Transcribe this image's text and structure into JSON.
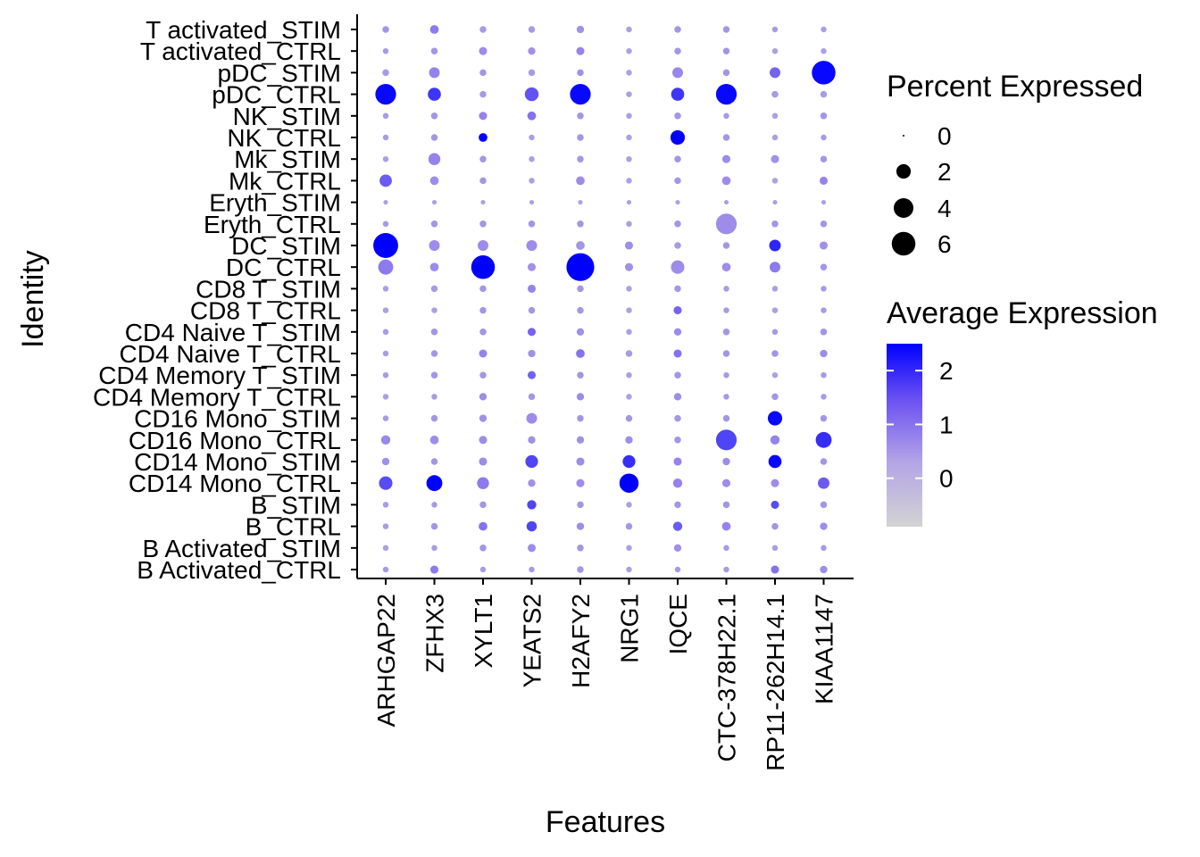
{
  "chart_data": {
    "type": "dotplot",
    "xlabel": "Features",
    "ylabel": "Identity",
    "features": [
      "ARHGAP22",
      "ZFHX3",
      "XYLT1",
      "YEATS2",
      "H2AFY2",
      "NRG1",
      "IQCE",
      "CTC-378H22.1",
      "RP11-262H14.1",
      "KIAA1147"
    ],
    "identities": [
      "T activated_STIM",
      "T activated_CTRL",
      "pDC_STIM",
      "pDC_CTRL",
      "NK_STIM",
      "NK_CTRL",
      "Mk_STIM",
      "Mk_CTRL",
      "Eryth_STIM",
      "Eryth_CTRL",
      "DC_STIM",
      "DC_CTRL",
      "CD8 T_STIM",
      "CD8 T_CTRL",
      "CD4 Naive T_STIM",
      "CD4 Naive T_CTRL",
      "CD4 Memory T_STIM",
      "CD4 Memory T_CTRL",
      "CD16 Mono_STIM",
      "CD16 Mono_CTRL",
      "CD14 Mono_STIM",
      "CD14 Mono_CTRL",
      "B_STIM",
      "B_CTRL",
      "B Activated_STIM",
      "B Activated_CTRL"
    ],
    "pct_expressed": [
      [
        0.3,
        0.6,
        0.3,
        0.3,
        0.4,
        0.2,
        0.3,
        0.3,
        0.2,
        0.2
      ],
      [
        0.2,
        0.3,
        0.5,
        0.4,
        0.5,
        0.2,
        0.3,
        0.3,
        0.2,
        0.2
      ],
      [
        0.3,
        1.0,
        0.3,
        0.3,
        0.3,
        0.2,
        1.0,
        0.3,
        1.0,
        6.0
      ],
      [
        4.5,
        1.6,
        0.3,
        1.8,
        4.5,
        0.2,
        1.6,
        4.5,
        0.3,
        0.3
      ],
      [
        0.2,
        0.3,
        0.5,
        0.6,
        0.3,
        0.2,
        0.3,
        0.2,
        0.2,
        0.3
      ],
      [
        0.2,
        0.3,
        0.6,
        0.2,
        0.3,
        0.2,
        2.0,
        0.3,
        0.2,
        0.2
      ],
      [
        0.2,
        1.3,
        0.3,
        0.2,
        0.3,
        0.2,
        0.3,
        0.5,
        0.5,
        0.3
      ],
      [
        1.4,
        0.6,
        0.3,
        0.2,
        0.6,
        0.2,
        0.3,
        0.6,
        0.2,
        0.5
      ],
      [
        0.1,
        0.1,
        0.1,
        0.1,
        0.1,
        0.1,
        0.1,
        0.1,
        0.1,
        0.1
      ],
      [
        0.2,
        0.3,
        0.3,
        0.3,
        0.3,
        0.2,
        0.3,
        4.5,
        0.3,
        0.3
      ],
      [
        6.7,
        1.0,
        1.0,
        1.0,
        0.6,
        0.5,
        0.3,
        0.3,
        1.2,
        0.5
      ],
      [
        2.2,
        0.6,
        6.0,
        0.5,
        8.5,
        0.5,
        1.7,
        0.6,
        1.0,
        0.3
      ],
      [
        0.2,
        0.3,
        0.3,
        0.5,
        0.3,
        0.2,
        0.3,
        0.2,
        0.2,
        0.2
      ],
      [
        0.2,
        0.2,
        0.3,
        0.3,
        0.3,
        0.2,
        0.5,
        0.2,
        0.2,
        0.2
      ],
      [
        0.2,
        0.3,
        0.3,
        0.5,
        0.4,
        0.2,
        0.4,
        0.3,
        0.2,
        0.3
      ],
      [
        0.2,
        0.3,
        0.5,
        0.4,
        0.6,
        0.3,
        0.5,
        0.3,
        0.3,
        0.4
      ],
      [
        0.2,
        0.3,
        0.3,
        0.5,
        0.3,
        0.2,
        0.3,
        0.2,
        0.2,
        0.2
      ],
      [
        0.2,
        0.2,
        0.4,
        0.3,
        0.4,
        0.2,
        0.4,
        0.2,
        0.3,
        0.2
      ],
      [
        0.2,
        0.3,
        0.4,
        1.0,
        0.3,
        0.3,
        0.3,
        0.3,
        2.0,
        0.3
      ],
      [
        0.7,
        0.6,
        0.5,
        0.4,
        0.4,
        0.4,
        0.3,
        4.5,
        0.7,
        2.5
      ],
      [
        0.4,
        0.3,
        0.5,
        1.5,
        0.5,
        1.5,
        0.5,
        0.4,
        1.6,
        0.3
      ],
      [
        1.7,
        2.5,
        1.3,
        0.4,
        0.5,
        3.8,
        0.7,
        0.5,
        0.5,
        1.2
      ],
      [
        0.2,
        0.2,
        0.3,
        0.7,
        0.3,
        0.2,
        0.3,
        0.3,
        0.5,
        0.3
      ],
      [
        0.2,
        0.3,
        0.6,
        0.9,
        0.4,
        0.3,
        0.7,
        0.6,
        0.3,
        0.4
      ],
      [
        0.2,
        0.2,
        0.3,
        0.5,
        0.3,
        0.2,
        0.4,
        0.2,
        0.2,
        0.2
      ],
      [
        0.2,
        0.5,
        0.2,
        0.2,
        0.3,
        0.2,
        0.2,
        0.2,
        0.5,
        0.4
      ]
    ],
    "avg_expression": [
      [
        0.4,
        0.9,
        0.3,
        0.3,
        0.5,
        0.2,
        0.4,
        0.4,
        0.3,
        0.2
      ],
      [
        0.3,
        0.4,
        0.6,
        0.5,
        0.8,
        0.2,
        0.4,
        0.4,
        0.2,
        0.2
      ],
      [
        0.3,
        0.8,
        0.4,
        0.3,
        0.5,
        0.2,
        0.7,
        0.4,
        1.2,
        2.4
      ],
      [
        2.4,
        1.8,
        0.3,
        1.4,
        2.4,
        0.2,
        1.8,
        2.4,
        0.3,
        0.3
      ],
      [
        0.3,
        0.4,
        0.8,
        1.0,
        0.4,
        0.2,
        0.4,
        0.3,
        0.2,
        0.4
      ],
      [
        0.3,
        0.4,
        2.5,
        0.2,
        0.4,
        0.2,
        2.5,
        0.4,
        0.2,
        0.3
      ],
      [
        0.2,
        0.8,
        0.4,
        0.2,
        0.4,
        0.2,
        0.4,
        0.6,
        0.5,
        0.4
      ],
      [
        1.3,
        0.6,
        0.4,
        0.2,
        0.6,
        0.2,
        0.4,
        0.6,
        0.2,
        0.8
      ],
      [
        0.2,
        0.2,
        0.2,
        0.2,
        0.2,
        0.2,
        0.2,
        0.2,
        0.2,
        0.2
      ],
      [
        0.3,
        0.4,
        0.4,
        0.4,
        0.4,
        0.2,
        0.4,
        0.6,
        0.4,
        0.4
      ],
      [
        2.5,
        0.6,
        0.6,
        0.6,
        0.4,
        0.6,
        0.3,
        0.4,
        2.0,
        0.5
      ],
      [
        0.9,
        0.6,
        2.5,
        0.5,
        2.5,
        0.5,
        0.6,
        0.6,
        0.9,
        0.4
      ],
      [
        0.2,
        0.3,
        0.4,
        0.8,
        0.4,
        0.2,
        0.4,
        0.3,
        0.2,
        0.3
      ],
      [
        0.2,
        0.2,
        0.4,
        0.4,
        0.4,
        0.2,
        1.2,
        0.3,
        0.2,
        0.3
      ],
      [
        0.3,
        0.4,
        0.4,
        1.2,
        0.5,
        0.2,
        0.6,
        0.4,
        0.3,
        0.4
      ],
      [
        0.3,
        0.4,
        0.8,
        0.5,
        1.0,
        0.3,
        1.0,
        0.4,
        0.4,
        0.6
      ],
      [
        0.3,
        0.4,
        0.4,
        1.2,
        0.4,
        0.2,
        0.4,
        0.3,
        0.2,
        0.3
      ],
      [
        0.2,
        0.3,
        0.6,
        0.4,
        0.6,
        0.2,
        0.6,
        0.3,
        0.4,
        0.3
      ],
      [
        0.3,
        0.4,
        0.5,
        0.6,
        0.4,
        0.4,
        0.4,
        0.4,
        2.4,
        0.4
      ],
      [
        0.7,
        0.6,
        0.6,
        0.5,
        0.5,
        0.6,
        0.4,
        1.6,
        0.8,
        1.9
      ],
      [
        0.5,
        0.4,
        0.6,
        1.6,
        0.6,
        1.9,
        0.8,
        0.6,
        2.4,
        0.4
      ],
      [
        1.5,
        2.5,
        0.9,
        0.5,
        0.6,
        2.5,
        0.8,
        0.6,
        0.6,
        1.3
      ],
      [
        0.3,
        0.3,
        0.4,
        1.6,
        0.4,
        0.2,
        0.4,
        0.4,
        1.5,
        0.4
      ],
      [
        0.3,
        0.4,
        1.0,
        1.6,
        0.6,
        0.4,
        1.3,
        0.8,
        0.4,
        0.6
      ],
      [
        0.2,
        0.3,
        0.4,
        0.6,
        0.4,
        0.2,
        0.5,
        0.3,
        0.2,
        0.3
      ],
      [
        0.3,
        0.9,
        0.3,
        0.3,
        0.4,
        0.2,
        0.3,
        0.3,
        1.0,
        0.6
      ]
    ],
    "legend_size": {
      "title": "Percent Expressed",
      "values": [
        0,
        2,
        4,
        6
      ],
      "labels": [
        "0",
        "2",
        "4",
        "6"
      ]
    },
    "legend_color": {
      "title": "Average Expression",
      "range": [
        -0.9,
        2.5
      ],
      "breaks": [
        2,
        1,
        0
      ],
      "labels": [
        "2",
        "1",
        "0"
      ],
      "low_color": "#d3d3d3",
      "high_color": "#0000ff"
    },
    "legend_placement": "right",
    "grid": false
  }
}
